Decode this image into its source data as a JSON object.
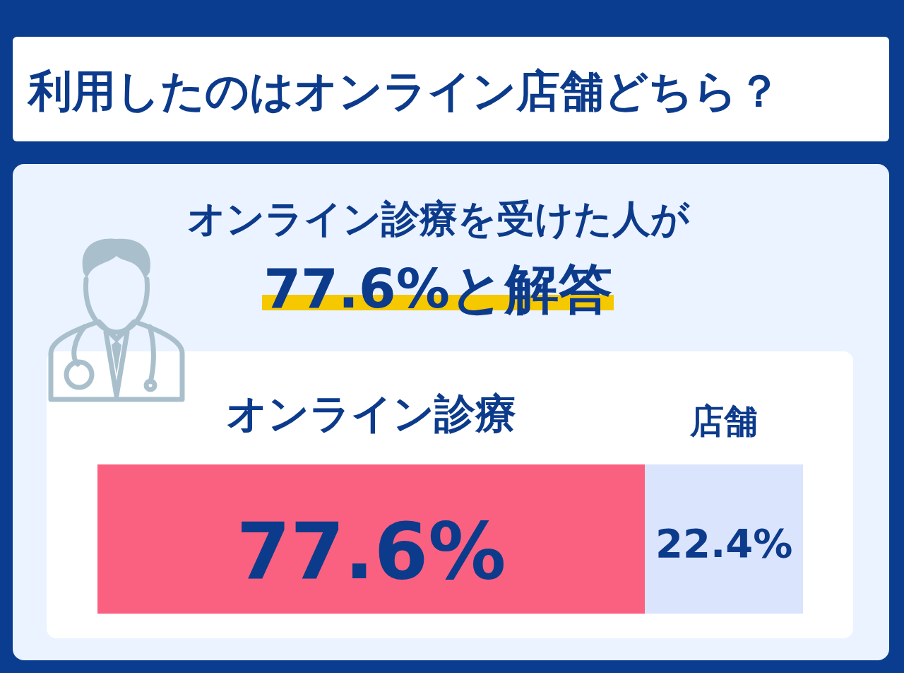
{
  "chart_data": {
    "type": "bar",
    "orientation": "horizontal",
    "stacked": true,
    "title": "利用したのはオンライン店舗どちら？",
    "subtitle": "オンライン診療を受けた人が",
    "annotations": [
      "77.6%と解答"
    ],
    "categories": [
      null
    ],
    "series": [
      {
        "name": "オンライン診療",
        "color": "#fa6180",
        "values": [
          77.6
        ],
        "value_labels": [
          "77.6%"
        ]
      },
      {
        "name": "店舗",
        "color": "#dbe4fd",
        "values": [
          22.4
        ],
        "value_labels": [
          "22.4%"
        ]
      }
    ],
    "legend": false
  }
}
